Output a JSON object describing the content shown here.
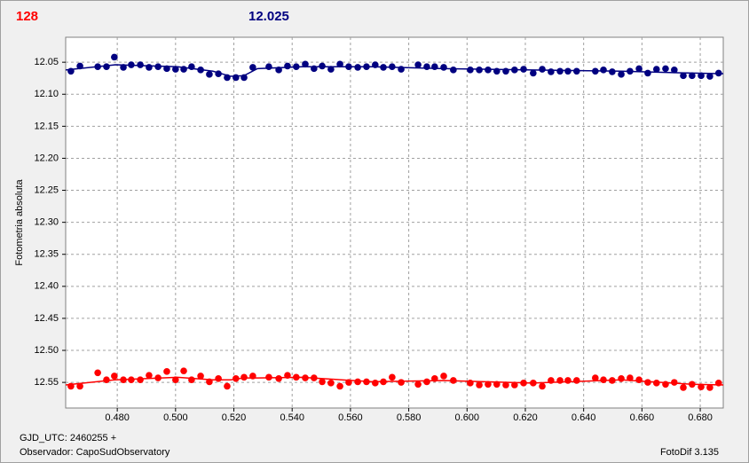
{
  "chart_data": {
    "type": "scatter",
    "header_left": "128",
    "header_right": "12.025",
    "ylabel": "Fotometria absoluta",
    "footer_left": [
      "GJD_UTC: 2460255 +",
      "Observador: CapoSudObservatory"
    ],
    "footer_right": "FotoDif 3.135",
    "xlim": [
      0.4623,
      0.6879
    ],
    "ylim": [
      12.011,
      12.59
    ],
    "y_inverted": true,
    "grid": true,
    "xticks": [
      {
        "value": 0.48,
        "label": "0.480"
      },
      {
        "value": 0.5,
        "label": "0.500"
      },
      {
        "value": 0.52,
        "label": "0.520"
      },
      {
        "value": 0.54,
        "label": "0.540"
      },
      {
        "value": 0.56,
        "label": "0.560"
      },
      {
        "value": 0.58,
        "label": "0.580"
      },
      {
        "value": 0.6,
        "label": "0.600"
      },
      {
        "value": 0.62,
        "label": "0.620"
      },
      {
        "value": 0.64,
        "label": "0.640"
      },
      {
        "value": 0.66,
        "label": "0.660"
      },
      {
        "value": 0.68,
        "label": "0.680"
      }
    ],
    "yticks": [
      12.05,
      {
        "value": 12.1,
        "label": "12.10"
      },
      12.15,
      {
        "value": 12.2,
        "label": "12.20"
      },
      12.25,
      {
        "value": 12.3,
        "label": "12.30"
      },
      12.35,
      {
        "value": 12.4,
        "label": "12.40"
      },
      12.45,
      {
        "value": 12.5,
        "label": "12.50"
      },
      12.55
    ],
    "x": [
      0.4641,
      0.4672,
      0.4733,
      0.4763,
      0.479,
      0.4821,
      0.4848,
      0.4879,
      0.4909,
      0.494,
      0.497,
      0.5,
      0.5028,
      0.5055,
      0.5086,
      0.5116,
      0.5147,
      0.5177,
      0.5207,
      0.5235,
      0.5265,
      0.532,
      0.5354,
      0.5384,
      0.5414,
      0.5445,
      0.5475,
      0.5503,
      0.5533,
      0.5564,
      0.5594,
      0.5625,
      0.5655,
      0.5685,
      0.5713,
      0.5743,
      0.5774,
      0.5832,
      0.5862,
      0.5889,
      0.592,
      0.5953,
      0.6011,
      0.6042,
      0.6072,
      0.6102,
      0.6133,
      0.6163,
      0.6194,
      0.6227,
      0.6258,
      0.6288,
      0.6319,
      0.6346,
      0.6376,
      0.644,
      0.6468,
      0.6498,
      0.6529,
      0.6559,
      0.659,
      0.662,
      0.665,
      0.6681,
      0.6711,
      0.6742,
      0.6772,
      0.6803,
      0.6833,
      0.6863
    ],
    "fit_x": [
      0.4623,
      0.4793,
      0.5007,
      0.5128,
      0.5189,
      0.5235,
      0.5281,
      0.5433,
      0.5676,
      0.592,
      0.6224,
      0.6529,
      0.6772,
      0.6879
    ],
    "series": [
      {
        "color": "#000080",
        "values": [
          12.064,
          12.056,
          12.057,
          12.057,
          12.042,
          12.058,
          12.054,
          12.054,
          12.058,
          12.057,
          12.06,
          12.061,
          12.061,
          12.057,
          12.062,
          12.069,
          12.068,
          12.074,
          12.074,
          12.074,
          12.058,
          12.057,
          12.062,
          12.056,
          12.057,
          12.053,
          12.06,
          12.056,
          12.061,
          12.053,
          12.057,
          12.058,
          12.057,
          12.054,
          12.058,
          12.057,
          12.061,
          12.054,
          12.057,
          12.057,
          12.058,
          12.062,
          12.062,
          12.062,
          12.062,
          12.064,
          12.064,
          12.062,
          12.061,
          12.067,
          12.061,
          12.065,
          12.064,
          12.064,
          12.064,
          12.064,
          12.062,
          12.065,
          12.069,
          12.064,
          12.06,
          12.067,
          12.061,
          12.06,
          12.062,
          12.071,
          12.071,
          12.071,
          12.072,
          12.067
        ],
        "fit_values": [
          12.062,
          12.054,
          12.057,
          12.064,
          12.072,
          12.071,
          12.06,
          12.057,
          12.057,
          12.06,
          12.062,
          12.064,
          12.067,
          12.068
        ]
      },
      {
        "color": "#ff0000",
        "values": [
          12.556,
          12.556,
          12.535,
          12.546,
          12.54,
          12.546,
          12.546,
          12.546,
          12.539,
          12.543,
          12.533,
          12.546,
          12.532,
          12.546,
          12.54,
          12.549,
          12.544,
          12.556,
          12.544,
          12.542,
          12.54,
          12.542,
          12.544,
          12.539,
          12.542,
          12.543,
          12.543,
          12.549,
          12.551,
          12.556,
          12.55,
          12.549,
          12.549,
          12.551,
          12.549,
          12.542,
          12.55,
          12.553,
          12.549,
          12.544,
          12.54,
          12.547,
          12.551,
          12.554,
          12.553,
          12.553,
          12.554,
          12.554,
          12.551,
          12.551,
          12.556,
          12.547,
          12.547,
          12.547,
          12.547,
          12.543,
          12.546,
          12.547,
          12.544,
          12.543,
          12.546,
          12.55,
          12.551,
          12.553,
          12.55,
          12.558,
          12.553,
          12.557,
          12.558,
          12.551
        ],
        "fit_values": [
          12.554,
          12.546,
          12.542,
          12.546,
          12.546,
          12.543,
          12.543,
          12.542,
          12.549,
          12.547,
          12.551,
          12.546,
          12.553,
          12.554
        ]
      }
    ]
  }
}
